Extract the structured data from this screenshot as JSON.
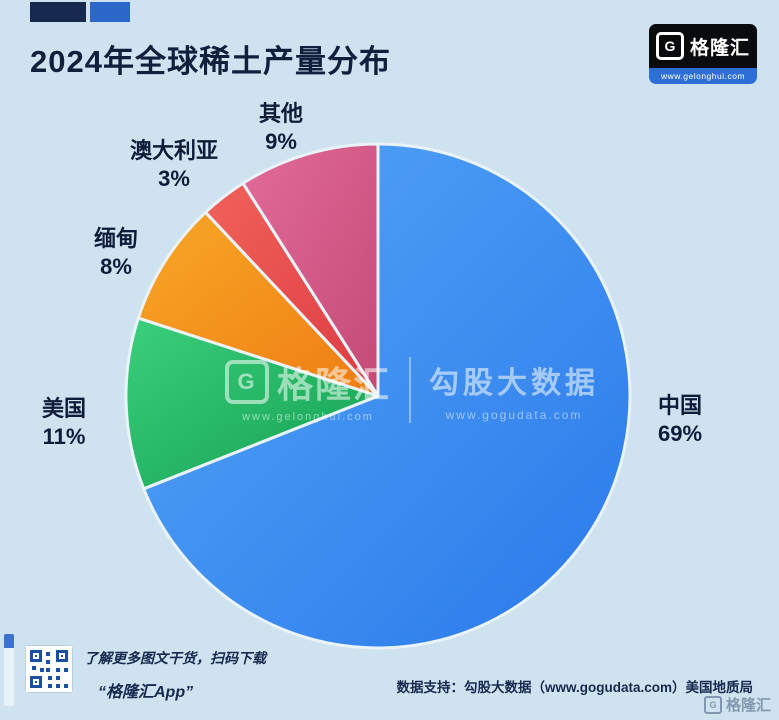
{
  "header": {
    "title": "2024年全球稀土产量分布",
    "logo": {
      "g_letter": "G",
      "brand": "格隆汇",
      "url": "www.gelonghui.com"
    }
  },
  "chart_data": {
    "type": "pie",
    "title": "2024年全球稀土产量分布",
    "unit": "%",
    "start_angle": "top",
    "direction": "clockwise",
    "legend_position": "labels-around-pie",
    "slices": [
      {
        "id": "china",
        "label": "中国",
        "value": 69,
        "pct": "69%",
        "color": "#2a79ea",
        "color_light": "#55a6f8"
      },
      {
        "id": "usa",
        "label": "美国",
        "value": 11,
        "pct": "11%",
        "color": "#13a053",
        "color_light": "#3bcf7b"
      },
      {
        "id": "myanmar",
        "label": "缅甸",
        "value": 8,
        "pct": "8%",
        "color": "#ee7c12",
        "color_light": "#f8a827"
      },
      {
        "id": "australia",
        "label": "澳大利亚",
        "value": 3,
        "pct": "3%",
        "color": "#dd3b41",
        "color_light": "#f0625a"
      },
      {
        "id": "others",
        "label": "其他",
        "value": 9,
        "pct": "9%",
        "color": "#c44a74",
        "color_light": "#e26b9b"
      }
    ]
  },
  "watermark": {
    "g_letter": "G",
    "brand": "格隆汇",
    "brand_url": "www.gelonghui.com",
    "partner": "勾股大数据",
    "partner_url": "www.gogudata.com"
  },
  "footer": {
    "caption_line1": "了解更多图文干货，扫码下载",
    "caption_line2": "“格隆汇App”",
    "source": "数据支持：勾股大数据（www.gogudata.com）美国地质局",
    "corner_g": "G",
    "corner_brand": "格隆汇"
  }
}
